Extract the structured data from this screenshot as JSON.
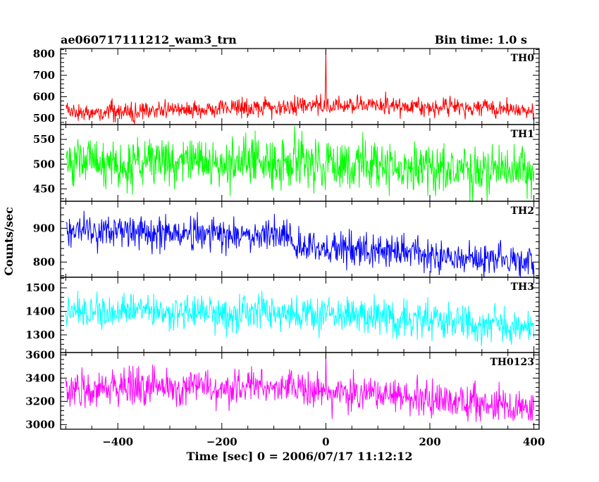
{
  "chart_data": {
    "type": "line",
    "title": "ae060717111212_wam3_trn",
    "subtitle": "Bin time: 1.0 s",
    "xlabel": "Time [sec] 0 = 2006/07/17 11:12:12",
    "ylabel": "Counts/sec",
    "xlim": [
      -510,
      410
    ],
    "x_ticks": [
      -400,
      -200,
      0,
      200,
      400
    ],
    "x_tick_labels": [
      "−400",
      "−200",
      "0",
      "200",
      "400"
    ],
    "x_data_range": [
      -500,
      400
    ],
    "bin_time": 1.0,
    "grid": false,
    "panels": [
      {
        "name": "TH0",
        "color": "#ff0000",
        "ylim": [
          470,
          825
        ],
        "yticks": [
          500,
          600,
          700,
          800
        ],
        "trend": [
          [
            -500,
            525
          ],
          [
            -250,
            540
          ],
          [
            0,
            555
          ],
          [
            200,
            560
          ],
          [
            400,
            535
          ]
        ],
        "noise": 22,
        "spikes": [
          [
            0,
            820
          ],
          [
            -1,
            640
          ],
          [
            1,
            610
          ]
        ]
      },
      {
        "name": "TH1",
        "color": "#00ff00",
        "ylim": [
          425,
          580
        ],
        "yticks": [
          450,
          500,
          550
        ],
        "trend": [
          [
            -500,
            510
          ],
          [
            -100,
            505
          ],
          [
            100,
            495
          ],
          [
            400,
            485
          ]
        ],
        "noise": 25,
        "spikes": []
      },
      {
        "name": "TH2",
        "color": "#0000ff",
        "ylim": [
          755,
          980
        ],
        "yticks": [
          800,
          900
        ],
        "trend": [
          [
            -500,
            895
          ],
          [
            -70,
            875
          ],
          [
            -60,
            845
          ],
          [
            200,
            825
          ],
          [
            400,
            800
          ]
        ],
        "noise": 25,
        "spikes": []
      },
      {
        "name": "TH3",
        "color": "#00ffff",
        "ylim": [
          1225,
          1545
        ],
        "yticks": [
          1300,
          1400,
          1500
        ],
        "trend": [
          [
            -500,
            1405
          ],
          [
            -100,
            1395
          ],
          [
            100,
            1370
          ],
          [
            400,
            1330
          ]
        ],
        "noise": 38,
        "spikes": []
      },
      {
        "name": "TH0123",
        "color": "#ff00ff",
        "ylim": [
          2960,
          3620
        ],
        "yticks": [
          3000,
          3200,
          3400,
          3600
        ],
        "trend": [
          [
            -500,
            3320
          ],
          [
            -100,
            3310
          ],
          [
            100,
            3250
          ],
          [
            400,
            3140
          ]
        ],
        "noise": 75,
        "spikes": [
          [
            0,
            3620
          ]
        ]
      }
    ]
  }
}
